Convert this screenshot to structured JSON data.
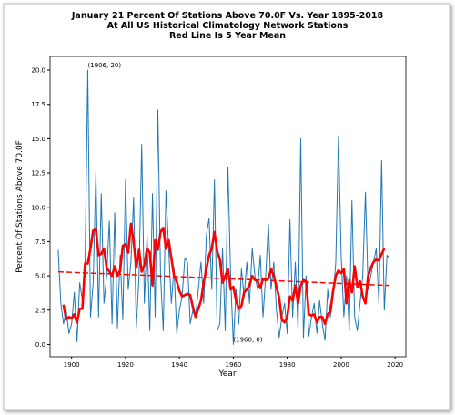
{
  "chart_data": {
    "type": "line",
    "title": [
      "January 21 Percent Of Stations Above 70.0F Vs. Year 1895-2018",
      "At All US Historical Climatology Network Stations",
      "Red Line Is 5 Year Mean"
    ],
    "xlabel": "Year",
    "ylabel": "Percent Of Stations Above 70.0F",
    "xlim": [
      1892,
      2024
    ],
    "ylim": [
      -0.9,
      21
    ],
    "xticks": [
      1900,
      1920,
      1940,
      1960,
      1980,
      2000,
      2020
    ],
    "yticks": [
      {
        "value": 0,
        "label": "0.0"
      },
      {
        "value": 2.5,
        "label": "2.5"
      },
      {
        "value": 5,
        "label": "5.0"
      },
      {
        "value": 7.5,
        "label": "7.5"
      },
      {
        "value": 10,
        "label": "10.0"
      },
      {
        "value": 12.5,
        "label": "12.5"
      },
      {
        "value": 15,
        "label": "15.0"
      },
      {
        "value": 17.5,
        "label": "17.5"
      },
      {
        "value": 20,
        "label": "20.0"
      }
    ],
    "series": [
      {
        "color": "#1f77b4",
        "width": 1,
        "dash": false,
        "x": [
          1895,
          1896,
          1897,
          1898,
          1899,
          1900,
          1901,
          1902,
          1903,
          1904,
          1905,
          1906,
          1907,
          1908,
          1909,
          1910,
          1911,
          1912,
          1913,
          1914,
          1915,
          1916,
          1917,
          1918,
          1919,
          1920,
          1921,
          1922,
          1923,
          1924,
          1925,
          1926,
          1927,
          1928,
          1929,
          1930,
          1931,
          1932,
          1933,
          1934,
          1935,
          1936,
          1937,
          1938,
          1939,
          1940,
          1941,
          1942,
          1943,
          1944,
          1945,
          1946,
          1947,
          1948,
          1949,
          1950,
          1951,
          1952,
          1953,
          1954,
          1955,
          1956,
          1957,
          1958,
          1959,
          1960,
          1961,
          1962,
          1963,
          1964,
          1965,
          1966,
          1967,
          1968,
          1969,
          1970,
          1971,
          1972,
          1973,
          1974,
          1975,
          1976,
          1977,
          1978,
          1979,
          1980,
          1981,
          1982,
          1983,
          1984,
          1985,
          1986,
          1987,
          1988,
          1989,
          1990,
          1991,
          1992,
          1993,
          1994,
          1995,
          1996,
          1997,
          1998,
          1999,
          2000,
          2001,
          2002,
          2003,
          2004,
          2005,
          2006,
          2007,
          2008,
          2009,
          2010,
          2011,
          2012,
          2013,
          2014,
          2015,
          2016,
          2017,
          2018
        ],
        "values": [
          6.9,
          3.0,
          1.5,
          2.5,
          0.8,
          1.5,
          3.8,
          0.2,
          4.5,
          3.2,
          6.0,
          20.0,
          2.0,
          4.5,
          12.6,
          2.0,
          11.0,
          3.0,
          5.0,
          9.0,
          1.5,
          9.6,
          1.2,
          6.5,
          1.8,
          12.0,
          4.0,
          6.0,
          10.7,
          1.2,
          5.0,
          14.6,
          3.0,
          8.0,
          1.0,
          11.0,
          2.0,
          17.1,
          5.0,
          1.0,
          11.2,
          7.0,
          3.0,
          5.6,
          0.8,
          2.5,
          3.5,
          6.3,
          6.0,
          1.5,
          2.5,
          2.0,
          4.0,
          6.0,
          3.0,
          8.0,
          9.2,
          4.0,
          12.0,
          1.0,
          1.5,
          7.0,
          1.0,
          12.9,
          5.0,
          0.0,
          4.0,
          1.5,
          5.5,
          3.5,
          6.0,
          3.0,
          7.0,
          5.0,
          4.0,
          6.5,
          2.0,
          5.0,
          8.8,
          4.0,
          6.0,
          2.5,
          0.5,
          2.0,
          3.0,
          0.8,
          9.1,
          2.0,
          6.0,
          1.0,
          15.0,
          0.5,
          5.0,
          0.6,
          2.0,
          3.0,
          0.8,
          3.2,
          1.5,
          0.3,
          4.0,
          2.0,
          3.5,
          6.0,
          15.2,
          6.5,
          2.0,
          5.0,
          1.0,
          10.5,
          2.0,
          1.0,
          3.0,
          5.0,
          11.1,
          4.0,
          5.0,
          6.0,
          7.0,
          3.0,
          13.4,
          2.5,
          6.5,
          6.3
        ]
      },
      {
        "color": "#ff0000",
        "width": 2.6,
        "dash": false,
        "x": [
          1897,
          1898,
          1899,
          1900,
          1901,
          1902,
          1903,
          1904,
          1905,
          1906,
          1907,
          1908,
          1909,
          1910,
          1911,
          1912,
          1913,
          1914,
          1915,
          1916,
          1917,
          1918,
          1919,
          1920,
          1921,
          1922,
          1923,
          1924,
          1925,
          1926,
          1927,
          1928,
          1929,
          1930,
          1931,
          1932,
          1933,
          1934,
          1935,
          1936,
          1937,
          1938,
          1939,
          1940,
          1941,
          1942,
          1943,
          1944,
          1945,
          1946,
          1947,
          1948,
          1949,
          1950,
          1951,
          1952,
          1953,
          1954,
          1955,
          1956,
          1957,
          1958,
          1959,
          1960,
          1961,
          1962,
          1963,
          1964,
          1965,
          1966,
          1967,
          1968,
          1969,
          1970,
          1971,
          1972,
          1973,
          1974,
          1975,
          1976,
          1977,
          1978,
          1979,
          1980,
          1981,
          1982,
          1983,
          1984,
          1985,
          1986,
          1987,
          1988,
          1989,
          1990,
          1991,
          1992,
          1993,
          1994,
          1995,
          1996,
          1997,
          1998,
          1999,
          2000,
          2001,
          2002,
          2003,
          2004,
          2005,
          2006,
          2007,
          2008,
          2009,
          2010,
          2011,
          2012,
          2013,
          2014,
          2015,
          2016
        ],
        "values": [
          2.9,
          1.8,
          2.0,
          1.9,
          2.2,
          1.6,
          2.6,
          2.6,
          5.9,
          5.9,
          7.0,
          8.3,
          8.4,
          6.5,
          6.6,
          7.0,
          5.6,
          5.3,
          5.0,
          5.7,
          5.0,
          5.4,
          7.2,
          7.3,
          6.7,
          8.8,
          7.5,
          5.6,
          6.9,
          5.3,
          5.8,
          7.0,
          6.7,
          4.3,
          7.6,
          6.9,
          8.2,
          8.5,
          7.0,
          7.6,
          6.3,
          5.0,
          4.6,
          3.9,
          3.5,
          3.6,
          3.7,
          3.6,
          2.7,
          2.0,
          2.6,
          3.2,
          4.5,
          5.5,
          6.5,
          7.0,
          8.2,
          6.8,
          6.2,
          4.5,
          5.0,
          5.5,
          4.0,
          4.2,
          3.2,
          2.6,
          2.8,
          3.8,
          4.0,
          4.3,
          5.0,
          4.7,
          4.6,
          4.1,
          4.8,
          4.7,
          4.8,
          5.5,
          5.0,
          4.2,
          3.4,
          1.8,
          1.6,
          2.0,
          3.5,
          3.2,
          4.3,
          3.0,
          4.3,
          4.7,
          4.6,
          2.2,
          2.1,
          2.2,
          1.6,
          2.0,
          2.0,
          1.5,
          2.2,
          2.4,
          3.9,
          5.0,
          5.4,
          5.2,
          5.5,
          3.0,
          4.7,
          3.8,
          5.7,
          4.2,
          4.6,
          3.5,
          3.0,
          5.0,
          5.6,
          6.0,
          6.2,
          6.1,
          6.6,
          7.0
        ]
      },
      {
        "color": "#ff0000",
        "width": 1.5,
        "dash": true,
        "x": [
          1895,
          2018
        ],
        "values": [
          5.3,
          4.3
        ]
      }
    ],
    "annotations": [
      {
        "text": "(1906, 20)",
        "x": 1906,
        "y": 20
      },
      {
        "text": "(1960, 0)",
        "x": 1960,
        "y": 0
      }
    ]
  }
}
